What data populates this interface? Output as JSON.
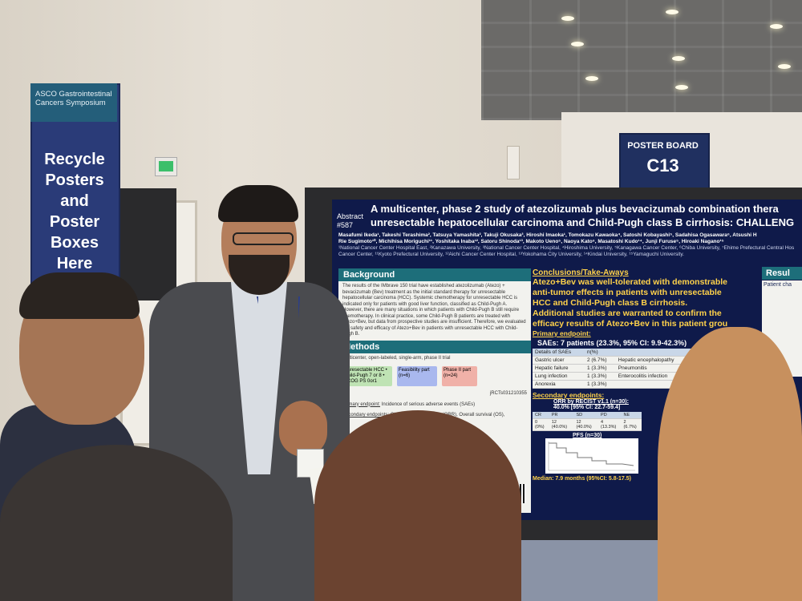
{
  "banner": {
    "brand_line1": "ASCO Gastrointestinal",
    "brand_line2": "Cancers Symposium",
    "message_line1": "Recycle",
    "message_line2": "Posters and",
    "message_line3": "Poster Boxes",
    "message_line4": "Here"
  },
  "board_sign": {
    "label": "POSTER BOARD",
    "id": "C13"
  },
  "poster": {
    "abstract_label": "Abstract",
    "abstract_number": "#587",
    "title_line1": "A multicenter, phase 2 study of atezolizumab plus bevacizumab combination thera",
    "title_line2": "unresectable hepatocellular carcinoma and Child-Pugh class B cirrhosis: CHALLENG",
    "authors_line1": "Masafumi Ikeda¹, Takeshi Terashima², Tatsuya Yamashita², Takuji Okusaka³, Hiroshi Imaoka¹, Tomokazu Kawaoka⁴, Satoshi Kobayashi⁵, Sadahisa Ogasawara⁶, Atsushi H",
    "authors_line2": "Rie Sugimoto¹⁰, Michihisa Moriguchi¹¹, Yoshitaka Inaba¹², Satoru Shinoda¹³, Makoto Ueno⁵, Naoya Kato⁶, Masatoshi Kudo¹⁴, Junji Furuse⁵, Hiroaki Nagano¹⁵",
    "authors_line3": "¹National Cancer Center Hospital East, ²Kanazawa University, ³National Cancer Center Hospital, ⁴Hiroshima University, ⁵Kanagawa Cancer Center, ⁶Chiba University, ⁷Ehime Prefectural Central Hos",
    "authors_line4": "Cancer Center, ¹¹Kyoto Prefectural University, ¹²Aichi Cancer Center Hospital, ¹³Yokohama City University, ¹⁴Kindai University, ¹⁵Yamaguchi University.",
    "background_head": "Background",
    "background_text": "The results of the IMbrave 150 trial have established atezolizumab (Atezo) + bevacizumab (Bev) treatment as the initial standard therapy for unresectable hepatocellular carcinoma (HCC). Systemic chemotherapy for unresectable HCC is indicated only for patients with good liver function, classified as Child-Pugh A. However, there are many situations in which patients with Child-Pugh B still require chemotherapy. In clinical practice, some Child-Pugh B patients are treated with Atezo+Bev, but data from prospective studies are insufficient. Therefore, we evaluated the safety and efficacy of Atezo+Bev in patients with unresectable HCC with Child-Pugh B.",
    "methods_head": "Methods",
    "methods_design": "Multicenter, open-labeled, single-arm, phase II trial",
    "flow_box1": "Unresectable HCC • Child-Pugh 7 or 8 • ECOG PS 0or1",
    "flow_box2": "Feasibility part (n=6)",
    "flow_box3": "Phase II part (n=24)",
    "registry": "jRCTs031210355",
    "primary_endpoint_label": "Primary endpoint:",
    "primary_endpoint": "Incidence of serious adverse events (SAEs)",
    "secondary_endpoints_label": "Secondary endpoints:",
    "secondary_endpoints": "Objective response rate (ORR), Overall survival (OS),",
    "conclusions_head": "Conclusions/Take-Aways",
    "conclusion_1": "Atezo+Bev was well-tolerated with demonstrable",
    "conclusion_2": "anti-tumor effects in patients with unresectable",
    "conclusion_3": "HCC and Child-Pugh class B cirrhosis.",
    "conclusion_4": "Additional studies are warranted to confirm the",
    "conclusion_5": "efficacy results of Atezo+Bev in this patient grou",
    "primary_head": "Primary endpoint:",
    "sae_summary": "SAEs: 7 patients (23.3%, 95% CI: 9.9-42.3%)",
    "sae_table": {
      "col1": "Details of SAEs",
      "col2": "n(%)",
      "rows": [
        {
          "name": "Gastric ulcer",
          "n": "2 (6.7%)",
          "other": "Hepatic encephalopathy"
        },
        {
          "name": "Hepatic failure",
          "n": "1 (3.3%)",
          "other": "Pneumonitis"
        },
        {
          "name": "Lung infection",
          "n": "1 (3.3%)",
          "other": "Enterocolitis infection"
        },
        {
          "name": "Anorexia",
          "n": "1 (3.3%)",
          "other": ""
        }
      ]
    },
    "secondary_head": "Secondary endpoints:",
    "orr_head": "ORR by RECIST v1.1 (n=30):",
    "orr_value": "40.0% [95% CI: 22.7-59.4]",
    "orr_cols": [
      "CR",
      "PR",
      "SD",
      "PD",
      "NE"
    ],
    "orr_vals": [
      "0 (0%)",
      "12 (40.0%)",
      "12 (40.0%)",
      "4 (13.3%)",
      "2 (6.7%)"
    ],
    "pfs_head": "PFS (n=30)",
    "pfs_median": "Median: 7.9 months (95%CI: 5.8-17.5)",
    "results_head": "Resul",
    "results_sub": "Patient cha"
  }
}
